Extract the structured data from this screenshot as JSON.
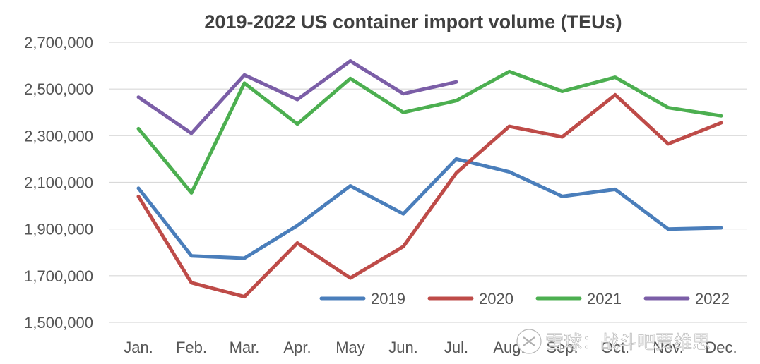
{
  "chart_data": {
    "type": "line",
    "title": "2019-2022 US container import volume (TEUs)",
    "xlabel": "",
    "ylabel": "",
    "categories": [
      "Jan.",
      "Feb.",
      "Mar.",
      "Apr.",
      "May",
      "Jun.",
      "Jul.",
      "Aug.",
      "Sep.",
      "Oct.",
      "Nov.",
      "Dec."
    ],
    "ylim": [
      1500000,
      2700000
    ],
    "yticks": [
      1500000,
      1700000,
      1900000,
      2100000,
      2300000,
      2500000,
      2700000
    ],
    "ytick_labels": [
      "1,500,000",
      "1,700,000",
      "1,900,000",
      "2,100,000",
      "2,300,000",
      "2,500,000",
      "2,700,000"
    ],
    "grid": true,
    "legend_position": "bottom-right",
    "series": [
      {
        "name": "2019",
        "color": "#4a7ebb",
        "values": [
          2075000,
          1785000,
          1775000,
          1915000,
          2085000,
          1965000,
          2200000,
          2145000,
          2040000,
          2070000,
          1900000,
          1905000
        ]
      },
      {
        "name": "2020",
        "color": "#be4b48",
        "values": [
          2040000,
          1670000,
          1610000,
          1840000,
          1690000,
          1825000,
          2140000,
          2340000,
          2295000,
          2475000,
          2265000,
          2355000
        ]
      },
      {
        "name": "2021",
        "color": "#4caf50",
        "values": [
          2330000,
          2055000,
          2525000,
          2350000,
          2545000,
          2400000,
          2450000,
          2575000,
          2490000,
          2550000,
          2420000,
          2385000
        ]
      },
      {
        "name": "2022",
        "color": "#7b5ea7",
        "values": [
          2465000,
          2310000,
          2560000,
          2455000,
          2620000,
          2480000,
          2530000,
          null,
          null,
          null,
          null,
          null
        ]
      }
    ]
  },
  "watermark": {
    "text": "雪球：战斗吧贾维思",
    "icon": "snowball-logo-icon"
  },
  "colors": {
    "grid": "#d9d9d9",
    "text": "#555555",
    "title": "#404040"
  }
}
